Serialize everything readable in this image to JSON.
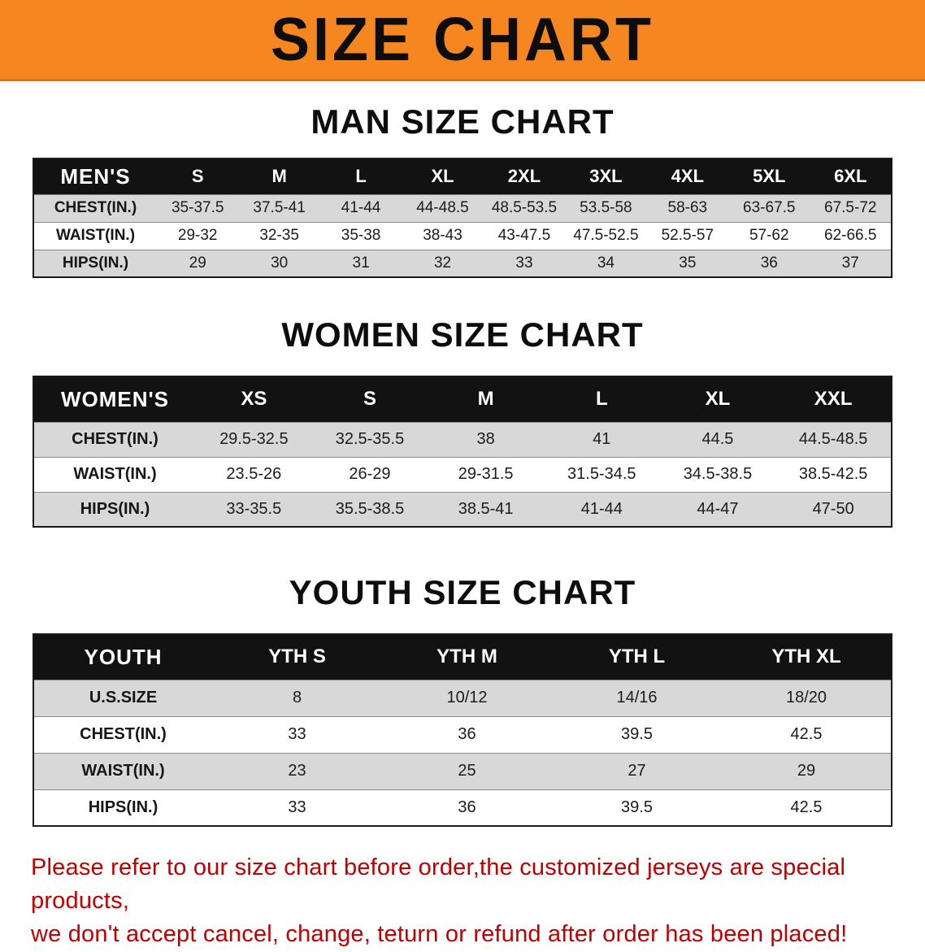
{
  "banner": {
    "title": "SIZE CHART"
  },
  "colors": {
    "banner_bg": "#f6861f",
    "table_header_bg": "#121212",
    "table_header_text": "#ffffff",
    "row_shade": "#d8d8d8",
    "note_text": "#c00000"
  },
  "men": {
    "heading": "MAN SIZE CHART",
    "columns": [
      "MEN'S",
      "S",
      "M",
      "L",
      "XL",
      "2XL",
      "3XL",
      "4XL",
      "5XL",
      "6XL"
    ],
    "rows": [
      {
        "label": "CHEST(IN.)",
        "values": [
          "35-37.5",
          "37.5-41",
          "41-44",
          "44-48.5",
          "48.5-53.5",
          "53.5-58",
          "58-63",
          "63-67.5",
          "67.5-72"
        ]
      },
      {
        "label": "WAIST(IN.)",
        "values": [
          "29-32",
          "32-35",
          "35-38",
          "38-43",
          "43-47.5",
          "47.5-52.5",
          "52.5-57",
          "57-62",
          "62-66.5"
        ]
      },
      {
        "label": "HIPS(IN.)",
        "values": [
          "29",
          "30",
          "31",
          "32",
          "33",
          "34",
          "35",
          "36",
          "37"
        ]
      }
    ]
  },
  "women": {
    "heading": "WOMEN SIZE CHART",
    "columns": [
      "WOMEN'S",
      "XS",
      "S",
      "M",
      "L",
      "XL",
      "XXL"
    ],
    "rows": [
      {
        "label": "CHEST(IN.)",
        "values": [
          "29.5-32.5",
          "32.5-35.5",
          "38",
          "41",
          "44.5",
          "44.5-48.5"
        ]
      },
      {
        "label": "WAIST(IN.)",
        "values": [
          "23.5-26",
          "26-29",
          "29-31.5",
          "31.5-34.5",
          "34.5-38.5",
          "38.5-42.5"
        ]
      },
      {
        "label": "HIPS(IN.)",
        "values": [
          "33-35.5",
          "35.5-38.5",
          "38.5-41",
          "41-44",
          "44-47",
          "47-50"
        ]
      }
    ]
  },
  "youth": {
    "heading": "YOUTH SIZE CHART",
    "columns": [
      "YOUTH",
      "YTH S",
      "YTH M",
      "YTH L",
      "YTH XL"
    ],
    "rows": [
      {
        "label": "U.S.SIZE",
        "values": [
          "8",
          "10/12",
          "14/16",
          "18/20"
        ]
      },
      {
        "label": "CHEST(IN.)",
        "values": [
          "33",
          "36",
          "39.5",
          "42.5"
        ]
      },
      {
        "label": "WAIST(IN.)",
        "values": [
          "23",
          "25",
          "27",
          "29"
        ]
      },
      {
        "label": "HIPS(IN.)",
        "values": [
          "33",
          "36",
          "39.5",
          "42.5"
        ]
      }
    ]
  },
  "note": {
    "line1": "Please refer to our size chart before order,the customized jerseys are special products,",
    "line2": "we don't accept cancel, change, teturn or refund after order has been placed!"
  }
}
